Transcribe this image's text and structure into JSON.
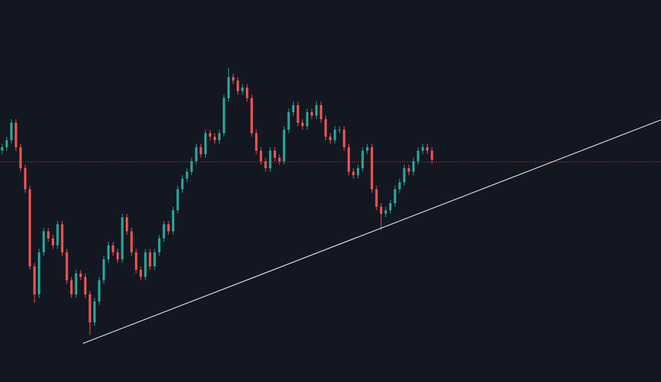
{
  "chart_data": {
    "type": "candlestick",
    "open": [
      330,
      335,
      345,
      370,
      335,
      305,
      275,
      165,
      125,
      185,
      215,
      205,
      195,
      225,
      185,
      145,
      125,
      155,
      150,
      125,
      85,
      115,
      145,
      175,
      195,
      185,
      175,
      235,
      215,
      185,
      160,
      150,
      185,
      165,
      185,
      205,
      225,
      215,
      245,
      275,
      290,
      300,
      315,
      335,
      325,
      355,
      350,
      345,
      355,
      405,
      435,
      430,
      415,
      420,
      405,
      355,
      330,
      315,
      305,
      330,
      320,
      315,
      360,
      385,
      395,
      370,
      365,
      385,
      380,
      395,
      375,
      350,
      345,
      360,
      360,
      335,
      300,
      295,
      305,
      330,
      335,
      275,
      250,
      240,
      245,
      255,
      275,
      285,
      305,
      300,
      315,
      330,
      335,
      330
    ],
    "high": [
      340,
      350,
      375,
      375,
      340,
      310,
      280,
      170,
      190,
      220,
      220,
      210,
      230,
      230,
      190,
      150,
      160,
      160,
      155,
      130,
      120,
      150,
      180,
      200,
      200,
      190,
      240,
      240,
      220,
      190,
      165,
      190,
      190,
      190,
      210,
      230,
      230,
      250,
      280,
      295,
      305,
      320,
      340,
      340,
      360,
      360,
      355,
      360,
      410,
      448,
      440,
      435,
      425,
      425,
      410,
      360,
      335,
      320,
      335,
      335,
      325,
      365,
      390,
      400,
      400,
      375,
      390,
      390,
      400,
      400,
      380,
      355,
      365,
      365,
      365,
      340,
      305,
      310,
      335,
      340,
      340,
      280,
      255,
      250,
      260,
      280,
      290,
      310,
      310,
      320,
      335,
      340,
      340,
      335
    ],
    "low": [
      325,
      330,
      340,
      330,
      300,
      270,
      160,
      113,
      120,
      180,
      200,
      190,
      190,
      180,
      140,
      120,
      120,
      145,
      120,
      67,
      80,
      110,
      140,
      170,
      180,
      170,
      170,
      210,
      180,
      155,
      145,
      145,
      160,
      160,
      180,
      200,
      210,
      210,
      240,
      270,
      285,
      295,
      310,
      320,
      320,
      345,
      340,
      340,
      350,
      400,
      425,
      410,
      410,
      400,
      350,
      325,
      310,
      300,
      300,
      315,
      310,
      310,
      355,
      380,
      365,
      360,
      360,
      375,
      375,
      370,
      345,
      340,
      340,
      355,
      330,
      295,
      290,
      290,
      300,
      325,
      270,
      245,
      217,
      235,
      240,
      250,
      270,
      280,
      295,
      295,
      310,
      325,
      325,
      312
    ],
    "close": [
      335,
      345,
      370,
      335,
      305,
      275,
      165,
      125,
      185,
      215,
      205,
      195,
      225,
      185,
      145,
      125,
      155,
      150,
      125,
      85,
      115,
      145,
      175,
      195,
      185,
      175,
      235,
      215,
      185,
      160,
      150,
      185,
      165,
      185,
      205,
      225,
      215,
      245,
      275,
      290,
      300,
      315,
      335,
      325,
      355,
      350,
      345,
      355,
      405,
      435,
      430,
      415,
      420,
      405,
      355,
      330,
      315,
      305,
      330,
      320,
      315,
      360,
      385,
      395,
      370,
      365,
      385,
      380,
      395,
      375,
      350,
      345,
      360,
      360,
      335,
      300,
      295,
      305,
      330,
      335,
      275,
      250,
      240,
      245,
      255,
      275,
      285,
      305,
      300,
      315,
      330,
      335,
      330,
      317
    ],
    "up_color": "#26a69a",
    "down_color": "#ef5350",
    "price_line": 314,
    "price_line_color": "#ef5350",
    "ylim": [
      0,
      545
    ]
  }
}
